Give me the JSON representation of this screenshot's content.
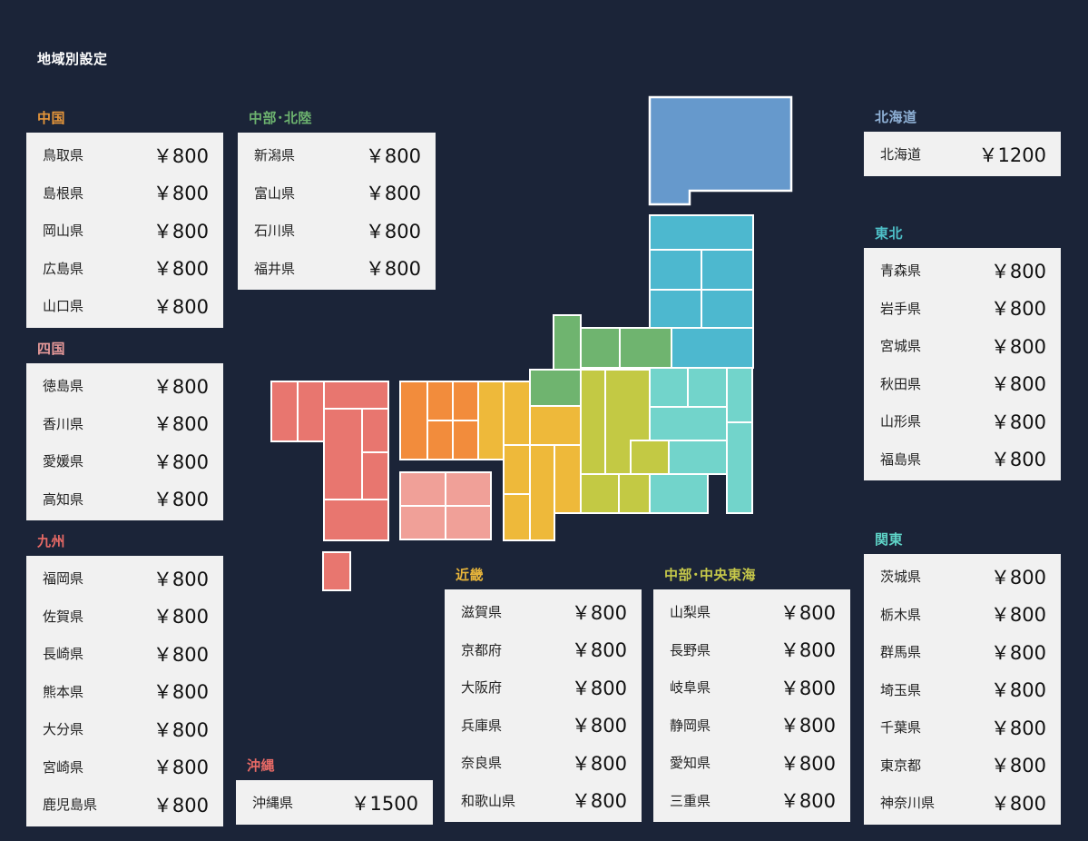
{
  "page_title": "地域別設定",
  "currency_symbol": "￥",
  "regions": [
    {
      "id": "chugoku",
      "title": "中国",
      "color": "#e6963a",
      "items": [
        {
          "name": "鳥取県",
          "price": "800"
        },
        {
          "name": "島根県",
          "price": "800"
        },
        {
          "name": "岡山県",
          "price": "800"
        },
        {
          "name": "広島県",
          "price": "800"
        },
        {
          "name": "山口県",
          "price": "800"
        }
      ]
    },
    {
      "id": "chubu-hokuriku",
      "title": "中部･北陸",
      "color": "#6db36f",
      "items": [
        {
          "name": "新潟県",
          "price": "800"
        },
        {
          "name": "富山県",
          "price": "800"
        },
        {
          "name": "石川県",
          "price": "800"
        },
        {
          "name": "福井県",
          "price": "800"
        }
      ]
    },
    {
      "id": "hokkaido",
      "title": "北海道",
      "color": "#8fb1d6",
      "items": [
        {
          "name": "北海道",
          "price": "1200"
        }
      ]
    },
    {
      "id": "tohoku",
      "title": "東北",
      "color": "#4ec0c8",
      "items": [
        {
          "name": "青森県",
          "price": "800"
        },
        {
          "name": "岩手県",
          "price": "800"
        },
        {
          "name": "宮城県",
          "price": "800"
        },
        {
          "name": "秋田県",
          "price": "800"
        },
        {
          "name": "山形県",
          "price": "800"
        },
        {
          "name": "福島県",
          "price": "800"
        }
      ]
    },
    {
      "id": "shikoku",
      "title": "四国",
      "color": "#e89a9a",
      "items": [
        {
          "name": "徳島県",
          "price": "800"
        },
        {
          "name": "香川県",
          "price": "800"
        },
        {
          "name": "愛媛県",
          "price": "800"
        },
        {
          "name": "高知県",
          "price": "800"
        }
      ]
    },
    {
      "id": "kyushu",
      "title": "九州",
      "color": "#e86a66",
      "items": [
        {
          "name": "福岡県",
          "price": "800"
        },
        {
          "name": "佐賀県",
          "price": "800"
        },
        {
          "name": "長崎県",
          "price": "800"
        },
        {
          "name": "熊本県",
          "price": "800"
        },
        {
          "name": "大分県",
          "price": "800"
        },
        {
          "name": "宮崎県",
          "price": "800"
        },
        {
          "name": "鹿児島県",
          "price": "800"
        }
      ]
    },
    {
      "id": "okinawa",
      "title": "沖縄",
      "color": "#e86a66",
      "items": [
        {
          "name": "沖縄県",
          "price": "1500"
        }
      ]
    },
    {
      "id": "kinki",
      "title": "近畿",
      "color": "#e8b53a",
      "items": [
        {
          "name": "滋賀県",
          "price": "800"
        },
        {
          "name": "京都府",
          "price": "800"
        },
        {
          "name": "大阪府",
          "price": "800"
        },
        {
          "name": "兵庫県",
          "price": "800"
        },
        {
          "name": "奈良県",
          "price": "800"
        },
        {
          "name": "和歌山県",
          "price": "800"
        }
      ]
    },
    {
      "id": "chubu-tokai",
      "title": "中部･中央東海",
      "color": "#c7c94a",
      "items": [
        {
          "name": "山梨県",
          "price": "800"
        },
        {
          "name": "長野県",
          "price": "800"
        },
        {
          "name": "岐阜県",
          "price": "800"
        },
        {
          "name": "静岡県",
          "price": "800"
        },
        {
          "name": "愛知県",
          "price": "800"
        },
        {
          "name": "三重県",
          "price": "800"
        }
      ]
    },
    {
      "id": "kanto",
      "title": "関東",
      "color": "#5ed2c6",
      "items": [
        {
          "name": "茨城県",
          "price": "800"
        },
        {
          "name": "栃木県",
          "price": "800"
        },
        {
          "name": "群馬県",
          "price": "800"
        },
        {
          "name": "埼玉県",
          "price": "800"
        },
        {
          "name": "千葉県",
          "price": "800"
        },
        {
          "name": "東京都",
          "price": "800"
        },
        {
          "name": "神奈川県",
          "price": "800"
        }
      ]
    }
  ],
  "map_colors": {
    "hokkaido": "#6699cc",
    "tohoku": "#4db8cf",
    "kanto": "#72d4cb",
    "chubu_tokai": "#c3c944",
    "chubu_hokuriku": "#6fb46f",
    "kinki": "#eeb93a",
    "chugoku": "#f28c3c",
    "shikoku": "#f0a098",
    "kyushu": "#e8766f",
    "okinawa": "#e8766f"
  }
}
